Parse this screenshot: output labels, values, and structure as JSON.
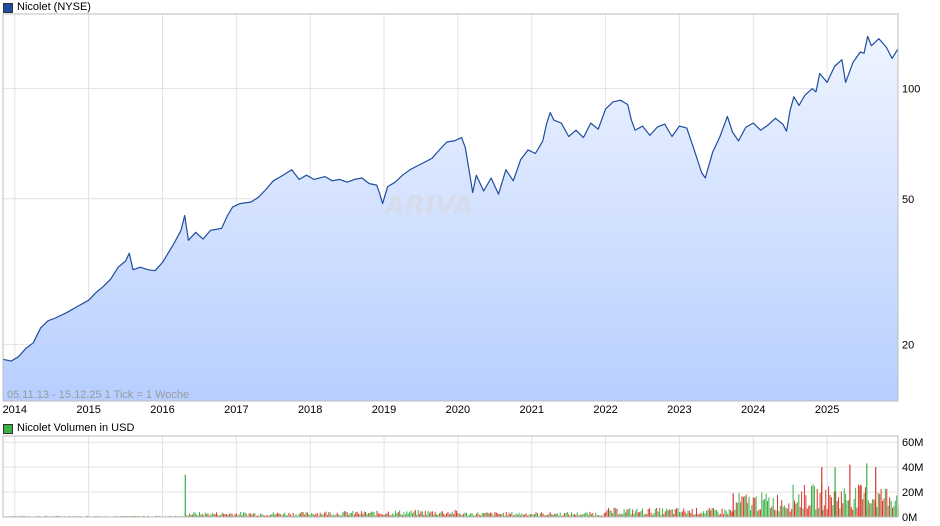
{
  "price_legend": {
    "label": "Nicolet (NYSE)",
    "color": "#1f4e9c"
  },
  "volume_legend": {
    "label": "Nicolet Volumen in USD",
    "color": "#3cb043"
  },
  "info_label": "05.11.13 - 15.12.25    1 Tick = 1 Woche",
  "watermark": "ARIVA",
  "chart_data": [
    {
      "type": "area",
      "title": "Nicolet (NYSE)",
      "yscale": "log",
      "ylim": [
        14,
        160
      ],
      "xlim": [
        2013.84,
        2025.96
      ],
      "y_ticks": [
        {
          "value": 20,
          "label": "20"
        },
        {
          "value": 50,
          "label": "50"
        },
        {
          "value": 100,
          "label": "100"
        }
      ],
      "x_ticks": [
        {
          "value": 2014,
          "label": "2014"
        },
        {
          "value": 2015,
          "label": "2015"
        },
        {
          "value": 2016,
          "label": "2016"
        },
        {
          "value": 2017,
          "label": "2017"
        },
        {
          "value": 2018,
          "label": "2018"
        },
        {
          "value": 2019,
          "label": "2019"
        },
        {
          "value": 2020,
          "label": "2020"
        },
        {
          "value": 2021,
          "label": "2021"
        },
        {
          "value": 2022,
          "label": "2022"
        },
        {
          "value": 2023,
          "label": "2023"
        },
        {
          "value": 2024,
          "label": "2024"
        },
        {
          "value": 2025,
          "label": "2025"
        }
      ],
      "grid": true,
      "series": [
        {
          "name": "Nicolet (NYSE)",
          "color": "#1f4e9c",
          "points": [
            [
              2013.84,
              18.2
            ],
            [
              2013.95,
              18.0
            ],
            [
              2014.05,
              18.5
            ],
            [
              2014.15,
              19.5
            ],
            [
              2014.25,
              20.2
            ],
            [
              2014.35,
              22.2
            ],
            [
              2014.45,
              23.2
            ],
            [
              2014.55,
              23.6
            ],
            [
              2014.7,
              24.4
            ],
            [
              2014.85,
              25.4
            ],
            [
              2015.0,
              26.4
            ],
            [
              2015.1,
              27.7
            ],
            [
              2015.2,
              28.8
            ],
            [
              2015.3,
              30.2
            ],
            [
              2015.4,
              32.5
            ],
            [
              2015.5,
              33.8
            ],
            [
              2015.55,
              35.5
            ],
            [
              2015.6,
              32.0
            ],
            [
              2015.7,
              32.5
            ],
            [
              2015.8,
              32.0
            ],
            [
              2015.9,
              31.8
            ],
            [
              2016.0,
              33.5
            ],
            [
              2016.15,
              37.6
            ],
            [
              2016.25,
              41.0
            ],
            [
              2016.3,
              45.0
            ],
            [
              2016.35,
              38.5
            ],
            [
              2016.45,
              40.5
            ],
            [
              2016.55,
              38.8
            ],
            [
              2016.65,
              41.0
            ],
            [
              2016.8,
              41.5
            ],
            [
              2016.88,
              45.0
            ],
            [
              2016.95,
              47.5
            ],
            [
              2017.05,
              48.5
            ],
            [
              2017.2,
              49.0
            ],
            [
              2017.3,
              50.5
            ],
            [
              2017.4,
              53.0
            ],
            [
              2017.5,
              56.0
            ],
            [
              2017.6,
              57.5
            ],
            [
              2017.75,
              60.0
            ],
            [
              2017.85,
              56.5
            ],
            [
              2017.95,
              58.0
            ],
            [
              2018.05,
              56.5
            ],
            [
              2018.2,
              57.5
            ],
            [
              2018.3,
              56.0
            ],
            [
              2018.4,
              56.5
            ],
            [
              2018.5,
              55.5
            ],
            [
              2018.6,
              56.5
            ],
            [
              2018.7,
              57.0
            ],
            [
              2018.8,
              55.0
            ],
            [
              2018.9,
              54.5
            ],
            [
              2018.95,
              51.0
            ],
            [
              2018.98,
              48.5
            ],
            [
              2019.05,
              54.0
            ],
            [
              2019.15,
              55.5
            ],
            [
              2019.25,
              58.0
            ],
            [
              2019.35,
              60.0
            ],
            [
              2019.45,
              61.5
            ],
            [
              2019.55,
              63.0
            ],
            [
              2019.65,
              64.5
            ],
            [
              2019.75,
              68.0
            ],
            [
              2019.85,
              71.5
            ],
            [
              2019.95,
              72.0
            ],
            [
              2020.05,
              73.5
            ],
            [
              2020.1,
              69.0
            ],
            [
              2020.15,
              60.0
            ],
            [
              2020.2,
              52.0
            ],
            [
              2020.25,
              58.0
            ],
            [
              2020.35,
              52.5
            ],
            [
              2020.45,
              57.0
            ],
            [
              2020.55,
              51.5
            ],
            [
              2020.65,
              60.0
            ],
            [
              2020.75,
              56.0
            ],
            [
              2020.85,
              64.0
            ],
            [
              2020.95,
              68.0
            ],
            [
              2021.05,
              66.5
            ],
            [
              2021.15,
              72.0
            ],
            [
              2021.2,
              80.0
            ],
            [
              2021.25,
              86.0
            ],
            [
              2021.3,
              82.0
            ],
            [
              2021.4,
              80.5
            ],
            [
              2021.5,
              74.0
            ],
            [
              2021.6,
              77.0
            ],
            [
              2021.7,
              73.5
            ],
            [
              2021.8,
              80.5
            ],
            [
              2021.9,
              77.5
            ],
            [
              2022.0,
              88.0
            ],
            [
              2022.1,
              92.0
            ],
            [
              2022.2,
              93.0
            ],
            [
              2022.3,
              90.5
            ],
            [
              2022.35,
              82.0
            ],
            [
              2022.4,
              77.0
            ],
            [
              2022.5,
              79.0
            ],
            [
              2022.6,
              74.5
            ],
            [
              2022.7,
              78.5
            ],
            [
              2022.8,
              80.0
            ],
            [
              2022.9,
              74.0
            ],
            [
              2023.0,
              79.0
            ],
            [
              2023.1,
              78.0
            ],
            [
              2023.2,
              68.0
            ],
            [
              2023.3,
              59.0
            ],
            [
              2023.35,
              57.0
            ],
            [
              2023.45,
              67.0
            ],
            [
              2023.55,
              74.0
            ],
            [
              2023.65,
              84.0
            ],
            [
              2023.72,
              76.0
            ],
            [
              2023.8,
              72.0
            ],
            [
              2023.9,
              78.5
            ],
            [
              2024.0,
              80.5
            ],
            [
              2024.1,
              77.0
            ],
            [
              2024.2,
              79.5
            ],
            [
              2024.3,
              83.0
            ],
            [
              2024.4,
              80.0
            ],
            [
              2024.45,
              76.5
            ],
            [
              2024.5,
              87.5
            ],
            [
              2024.55,
              95.0
            ],
            [
              2024.62,
              90.0
            ],
            [
              2024.7,
              96.0
            ],
            [
              2024.8,
              100.0
            ],
            [
              2024.85,
              98.0
            ],
            [
              2024.9,
              110.0
            ],
            [
              2025.0,
              104.0
            ],
            [
              2025.1,
              115.0
            ],
            [
              2025.2,
              120.0
            ],
            [
              2025.25,
              104.0
            ],
            [
              2025.35,
              118.0
            ],
            [
              2025.45,
              126.0
            ],
            [
              2025.5,
              125.0
            ],
            [
              2025.55,
              139.0
            ],
            [
              2025.6,
              131.0
            ],
            [
              2025.7,
              137.0
            ],
            [
              2025.8,
              130.0
            ],
            [
              2025.88,
              121.0
            ],
            [
              2025.96,
              128.5
            ]
          ]
        }
      ]
    },
    {
      "type": "bar",
      "title": "Nicolet Volumen in USD",
      "ylim": [
        0,
        65
      ],
      "y_unit": "M",
      "xlim": [
        2013.84,
        2025.96
      ],
      "y_ticks": [
        {
          "value": 0,
          "label": "0M"
        },
        {
          "value": 20,
          "label": "20M"
        },
        {
          "value": 40,
          "label": "40M"
        },
        {
          "value": 60,
          "label": "60M"
        }
      ],
      "grid": true,
      "series": [
        {
          "name": "Nicolet Volumen in USD",
          "up_color": "#3cb043",
          "down_color": "#d9382b",
          "segments": [
            {
              "from": 2013.84,
              "to": 2016.3,
              "level": 0.6
            },
            {
              "from": 2016.3,
              "to": 2018.0,
              "level": 2.5
            },
            {
              "from": 2018.0,
              "to": 2019.0,
              "level": 3.0
            },
            {
              "from": 2019.0,
              "to": 2020.0,
              "level": 3.5
            },
            {
              "from": 2020.0,
              "to": 2022.0,
              "level": 2.5
            },
            {
              "from": 2022.0,
              "to": 2023.75,
              "level": 4.5
            },
            {
              "from": 2023.75,
              "to": 2024.5,
              "level": 12.0
            },
            {
              "from": 2024.5,
              "to": 2025.96,
              "level": 16.0
            }
          ],
          "spikes": [
            {
              "x": 2016.3,
              "value": 34,
              "up": true
            },
            {
              "x": 2023.72,
              "value": 19,
              "up": false
            },
            {
              "x": 2024.92,
              "value": 40,
              "up": false
            },
            {
              "x": 2025.1,
              "value": 40,
              "up": true
            },
            {
              "x": 2025.3,
              "value": 42,
              "up": false
            },
            {
              "x": 2025.45,
              "value": 26,
              "up": false
            },
            {
              "x": 2025.53,
              "value": 43,
              "up": true
            },
            {
              "x": 2025.65,
              "value": 40,
              "up": false
            }
          ]
        }
      ]
    }
  ]
}
